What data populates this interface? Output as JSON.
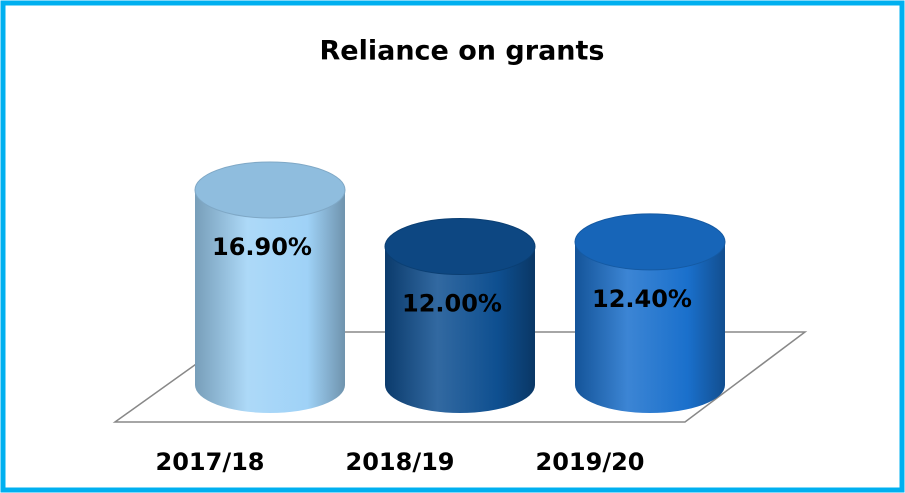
{
  "chart_data": {
    "type": "bar",
    "title": "Reliance on grants",
    "categories": [
      "2017/18",
      "2018/19",
      "2019/20"
    ],
    "values": [
      16.9,
      12.0,
      12.4
    ],
    "value_labels": [
      "16.90%",
      "12.00%",
      "12.40%"
    ],
    "colors": [
      "#9fd2f7",
      "#0e4f90",
      "#1a70cc"
    ]
  }
}
